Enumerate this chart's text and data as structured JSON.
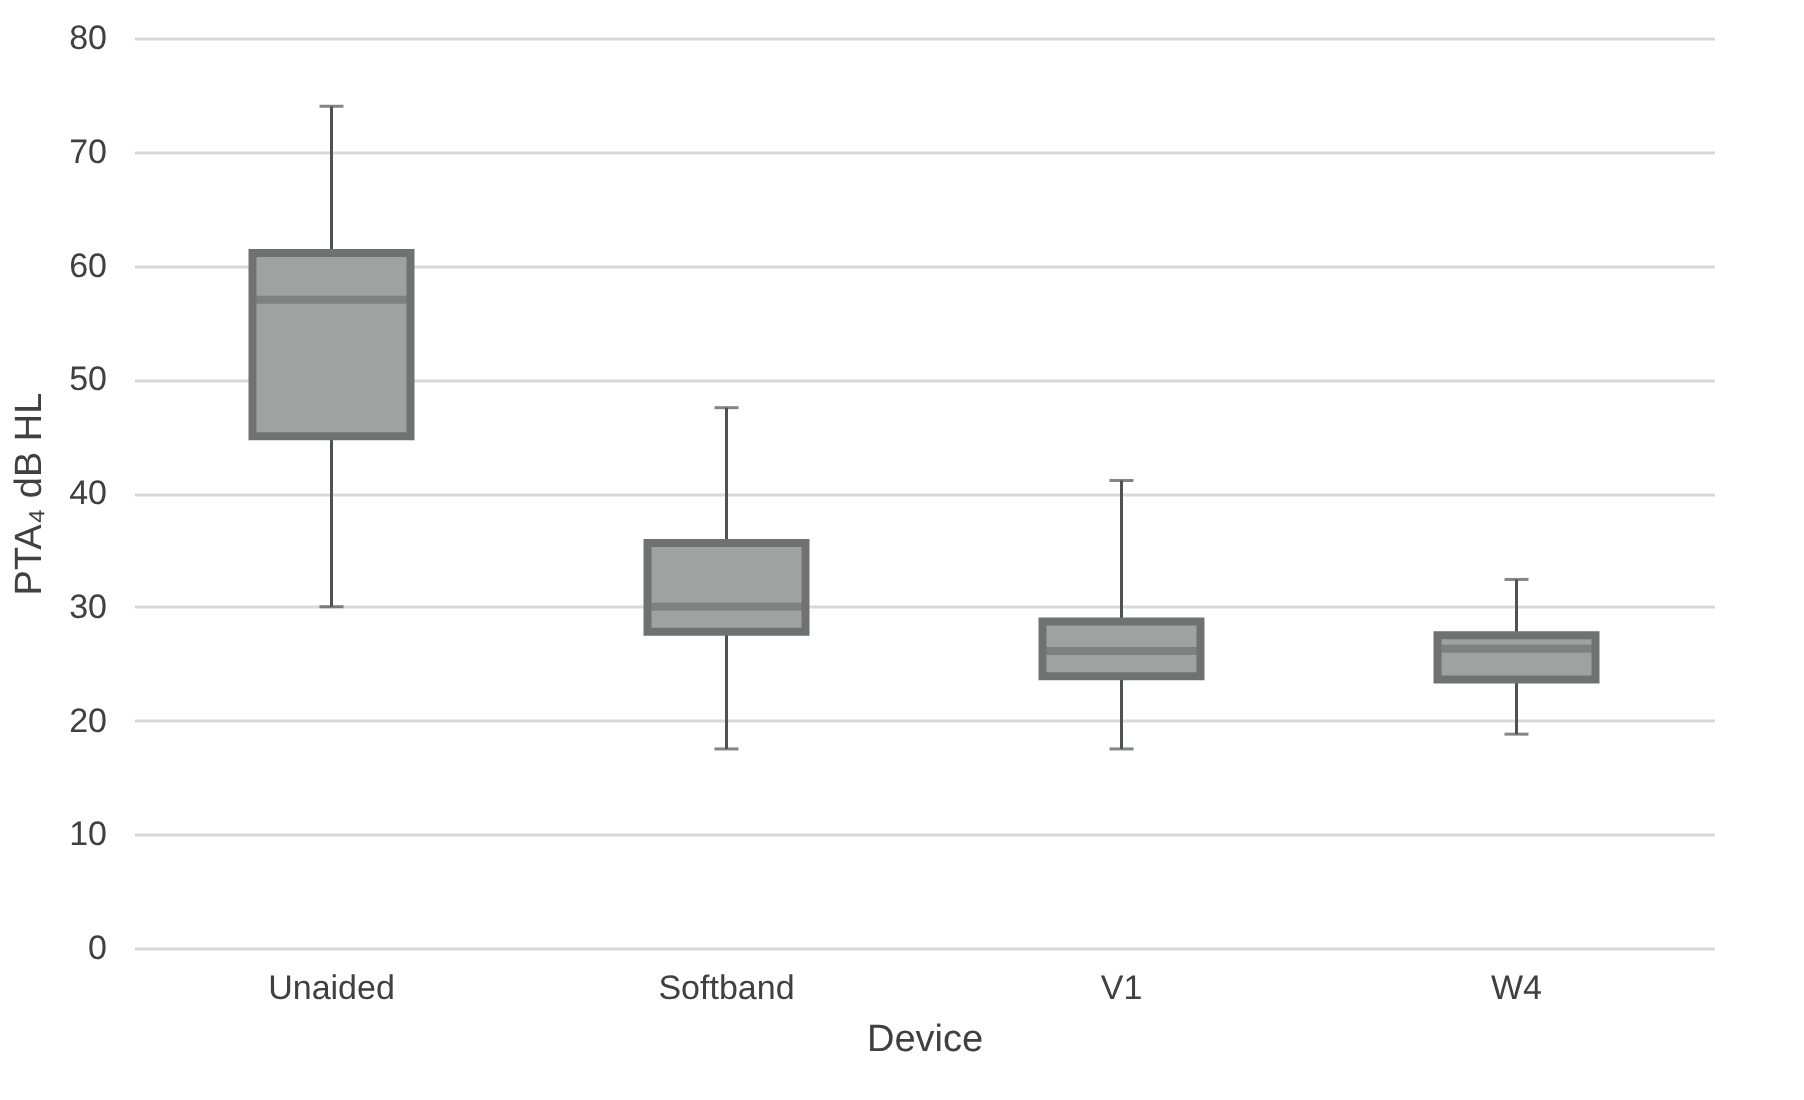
{
  "chart_data": {
    "type": "box",
    "xlabel": "Device",
    "ylabel": "PTA₄ dB HL",
    "categories": [
      "Unaided",
      "Softband",
      "V1",
      "W4"
    ],
    "boxes": [
      {
        "low": 30.0,
        "q1": 45.0,
        "median": 57.0,
        "q3": 61.1,
        "high": 74.0
      },
      {
        "low": 17.5,
        "q1": 27.8,
        "median": 30.0,
        "q3": 35.6,
        "high": 47.5
      },
      {
        "low": 17.5,
        "q1": 23.9,
        "median": 26.1,
        "q3": 28.7,
        "high": 41.1
      },
      {
        "low": 18.8,
        "q1": 23.6,
        "median": 26.3,
        "q3": 27.5,
        "high": 32.4
      }
    ],
    "color": "#a0a1a1",
    "ylim": [
      0,
      80
    ],
    "yticks": [
      0,
      10,
      20,
      30,
      40,
      50,
      60,
      70,
      80
    ],
    "grid": "y"
  }
}
